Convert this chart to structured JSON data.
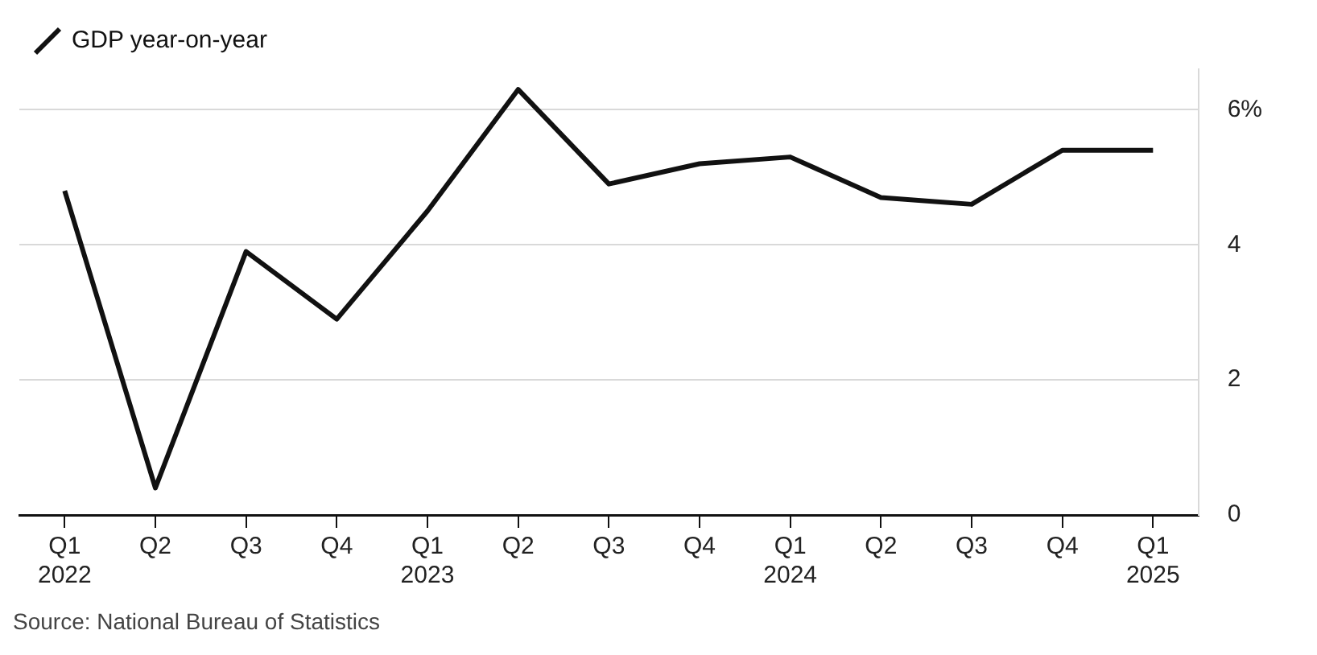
{
  "chart_data": {
    "type": "line",
    "categories": [
      "Q1\n2022",
      "Q2",
      "Q3",
      "Q4",
      "Q1\n2023",
      "Q2",
      "Q3",
      "Q4",
      "Q1\n2024",
      "Q2",
      "Q3",
      "Q4",
      "Q1\n2025"
    ],
    "series": [
      {
        "name": "GDP year-on-year",
        "color": "#111111",
        "values": [
          4.8,
          0.4,
          3.9,
          2.9,
          4.5,
          6.3,
          4.9,
          5.2,
          5.3,
          4.7,
          4.6,
          5.4,
          5.4
        ]
      }
    ],
    "ylim": [
      0,
      6.6
    ],
    "yticks": [
      0,
      2,
      4,
      {
        "value": 6,
        "label": "6%"
      }
    ],
    "grid": "y",
    "legend": "top left",
    "marker": "none",
    "line_style": "solid",
    "annotations": [
      "Source: National Bureau of Statistics"
    ]
  }
}
